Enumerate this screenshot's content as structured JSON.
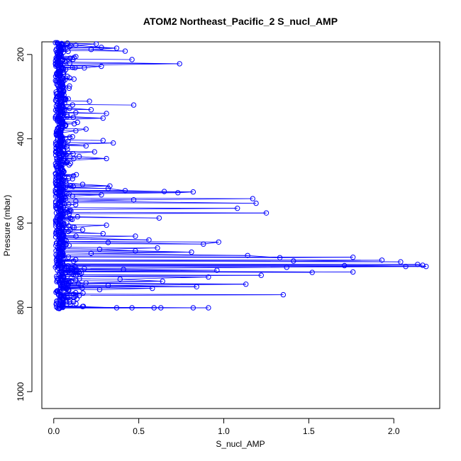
{
  "chart_data": {
    "type": "scatter",
    "title": "ATOM2 Northeast_Pacific_2 S_nucl_AMP",
    "xlabel": "S_nucl_AMP",
    "ylabel": "Pressure (mbar)",
    "xlim": [
      -0.07,
      2.27
    ],
    "ylim": [
      1040,
      170
    ],
    "y_axis_inverted": true,
    "x_ticks": [
      "0.0",
      "0.5",
      "1.0",
      "1.5",
      "2.0"
    ],
    "y_ticks": [
      "200",
      "400",
      "600",
      "800",
      "1000"
    ],
    "grid": false,
    "legend": "none",
    "series_color": "#0000ff",
    "marker": "open-circle",
    "connected_line": true,
    "series": [
      {
        "points": [
          [
            0.02,
            172
          ],
          [
            0.08,
            173
          ],
          [
            0.25,
            175
          ],
          [
            0.13,
            178
          ],
          [
            0.28,
            183
          ],
          [
            0.37,
            185
          ],
          [
            0.22,
            188
          ],
          [
            0.42,
            192
          ],
          [
            0.04,
            198
          ],
          [
            0.13,
            205
          ],
          [
            0.46,
            212
          ],
          [
            0.07,
            218
          ],
          [
            0.74,
            222
          ],
          [
            0.04,
            226
          ],
          [
            0.28,
            228
          ],
          [
            0.18,
            232
          ],
          [
            0.07,
            236
          ],
          [
            0.03,
            244
          ],
          [
            0.08,
            252
          ],
          [
            0.05,
            265
          ],
          [
            0.09,
            280
          ],
          [
            0.06,
            296
          ],
          [
            0.21,
            311
          ],
          [
            0.47,
            320
          ],
          [
            0.05,
            326
          ],
          [
            0.22,
            331
          ],
          [
            0.13,
            338
          ],
          [
            0.31,
            340
          ],
          [
            0.08,
            347
          ],
          [
            0.29,
            351
          ],
          [
            0.03,
            355
          ],
          [
            0.14,
            361
          ],
          [
            0.07,
            369
          ],
          [
            0.19,
            377
          ],
          [
            0.13,
            381
          ],
          [
            0.04,
            386
          ],
          [
            0.11,
            395
          ],
          [
            0.29,
            404
          ],
          [
            0.35,
            410
          ],
          [
            0.06,
            414
          ],
          [
            0.19,
            417
          ],
          [
            0.08,
            425
          ],
          [
            0.24,
            431
          ],
          [
            0.05,
            436
          ],
          [
            0.15,
            442
          ],
          [
            0.31,
            447
          ],
          [
            0.04,
            452
          ],
          [
            0.09,
            462
          ],
          [
            0.06,
            478
          ],
          [
            0.11,
            495
          ],
          [
            0.03,
            503
          ],
          [
            0.17,
            508
          ],
          [
            0.33,
            512
          ],
          [
            0.07,
            515
          ],
          [
            0.32,
            518
          ],
          [
            0.42,
            523
          ],
          [
            0.65,
            525
          ],
          [
            0.82,
            526
          ],
          [
            0.73,
            528
          ],
          [
            0.09,
            531
          ],
          [
            0.28,
            533
          ],
          [
            0.11,
            536
          ],
          [
            1.17,
            542
          ],
          [
            0.47,
            545
          ],
          [
            0.13,
            548
          ],
          [
            1.19,
            553
          ],
          [
            1.08,
            565
          ],
          [
            0.07,
            568
          ],
          [
            1.25,
            576
          ],
          [
            0.09,
            578
          ],
          [
            0.14,
            585
          ],
          [
            0.62,
            588
          ],
          [
            0.04,
            596
          ],
          [
            0.31,
            605
          ],
          [
            0.12,
            610
          ],
          [
            0.17,
            616
          ],
          [
            0.06,
            620
          ],
          [
            0.29,
            625
          ],
          [
            0.48,
            631
          ],
          [
            0.05,
            635
          ],
          [
            0.56,
            640
          ],
          [
            0.32,
            646
          ],
          [
            0.88,
            650
          ],
          [
            0.97,
            645
          ],
          [
            0.09,
            653
          ],
          [
            0.61,
            659
          ],
          [
            0.27,
            662
          ],
          [
            0.48,
            666
          ],
          [
            0.81,
            669
          ],
          [
            0.22,
            672
          ],
          [
            1.14,
            677
          ],
          [
            1.33,
            682
          ],
          [
            1.76,
            681
          ],
          [
            1.93,
            688
          ],
          [
            1.41,
            690
          ],
          [
            2.04,
            692
          ],
          [
            2.14,
            698
          ],
          [
            2.17,
            700
          ],
          [
            1.71,
            701
          ],
          [
            2.07,
            703
          ],
          [
            2.19,
            703
          ],
          [
            1.37,
            705
          ],
          [
            0.18,
            708
          ],
          [
            1.52,
            717
          ],
          [
            0.41,
            710
          ],
          [
            0.96,
            712
          ],
          [
            0.13,
            714
          ],
          [
            1.76,
            716
          ],
          [
            1.22,
            724
          ],
          [
            0.08,
            726
          ],
          [
            0.91,
            728
          ],
          [
            0.39,
            733
          ],
          [
            0.64,
            738
          ],
          [
            0.19,
            742
          ],
          [
            1.13,
            745
          ],
          [
            0.32,
            748
          ],
          [
            0.84,
            751
          ],
          [
            0.04,
            752
          ],
          [
            0.58,
            755
          ],
          [
            0.27,
            758
          ],
          [
            1.35,
            770
          ],
          [
            0.13,
            772
          ],
          [
            0.08,
            778
          ],
          [
            0.05,
            792
          ],
          [
            0.17,
            798
          ],
          [
            0.37,
            801
          ],
          [
            0.46,
            801
          ],
          [
            0.59,
            801
          ],
          [
            0.63,
            801
          ],
          [
            0.82,
            801
          ],
          [
            0.91,
            801
          ],
          [
            0.03,
            802
          ]
        ]
      }
    ]
  }
}
